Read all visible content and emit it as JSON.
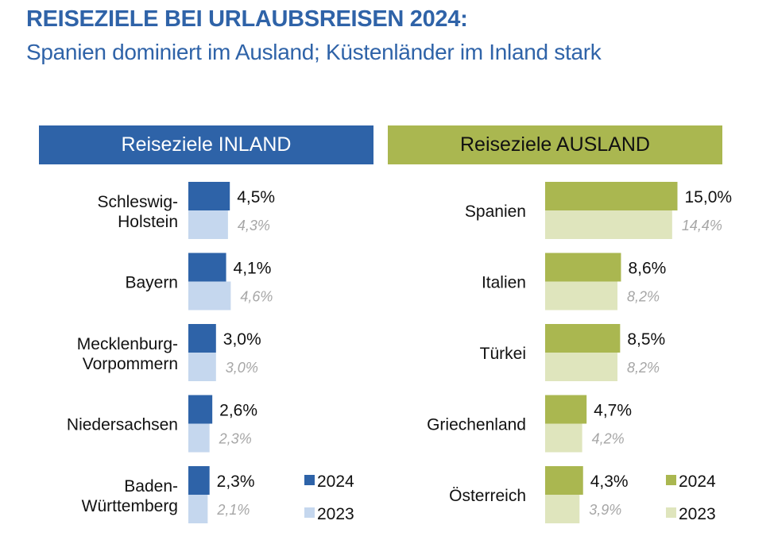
{
  "header": {
    "title": "REISEZIELE BEI URLAUBSREISEN 2024:",
    "subtitle": "Spanien dominiert im Ausland; Küstenländer im Inland stark"
  },
  "colors": {
    "title": "#2f63a8",
    "inland_2024": "#2e63a8",
    "inland_2023": "#c5d7ee",
    "ausland_2024": "#aab750",
    "ausland_2023": "#dfe5bd",
    "label_2023": "#a6a6a6"
  },
  "chart_data": [
    {
      "type": "bar",
      "orientation": "horizontal",
      "title": "Reiseziele INLAND",
      "categories": [
        [
          "Schleswig-",
          "Holstein"
        ],
        [
          "Bayern"
        ],
        [
          "Mecklenburg-",
          "Vorpommern"
        ],
        [
          "Niedersachsen"
        ],
        [
          "Baden-",
          "Württemberg"
        ]
      ],
      "series": [
        {
          "name": "2024",
          "values": [
            4.5,
            4.1,
            3.0,
            2.6,
            2.3
          ],
          "labels": [
            "4,5%",
            "4,1%",
            "3,0%",
            "2,6%",
            "2,3%"
          ]
        },
        {
          "name": "2023",
          "values": [
            4.3,
            4.6,
            3.0,
            2.3,
            2.1
          ],
          "labels": [
            "4,3%",
            "4,6%",
            "3,0%",
            "2,3%",
            "2,1%"
          ]
        }
      ],
      "unit": "%",
      "legend": "bottom-right"
    },
    {
      "type": "bar",
      "orientation": "horizontal",
      "title": "Reiseziele AUSLAND",
      "categories": [
        [
          "Spanien"
        ],
        [
          "Italien"
        ],
        [
          "Türkei"
        ],
        [
          "Griechenland"
        ],
        [
          "Österreich"
        ]
      ],
      "series": [
        {
          "name": "2024",
          "values": [
            15.0,
            8.6,
            8.5,
            4.7,
            4.3
          ],
          "labels": [
            "15,0%",
            "8,6%",
            "8,5%",
            "4,7%",
            "4,3%"
          ]
        },
        {
          "name": "2023",
          "values": [
            14.4,
            8.2,
            8.2,
            4.2,
            3.9
          ],
          "labels": [
            "14,4%",
            "8,2%",
            "8,2%",
            "4,2%",
            "3,9%"
          ]
        }
      ],
      "unit": "%",
      "legend": "bottom-right"
    }
  ]
}
